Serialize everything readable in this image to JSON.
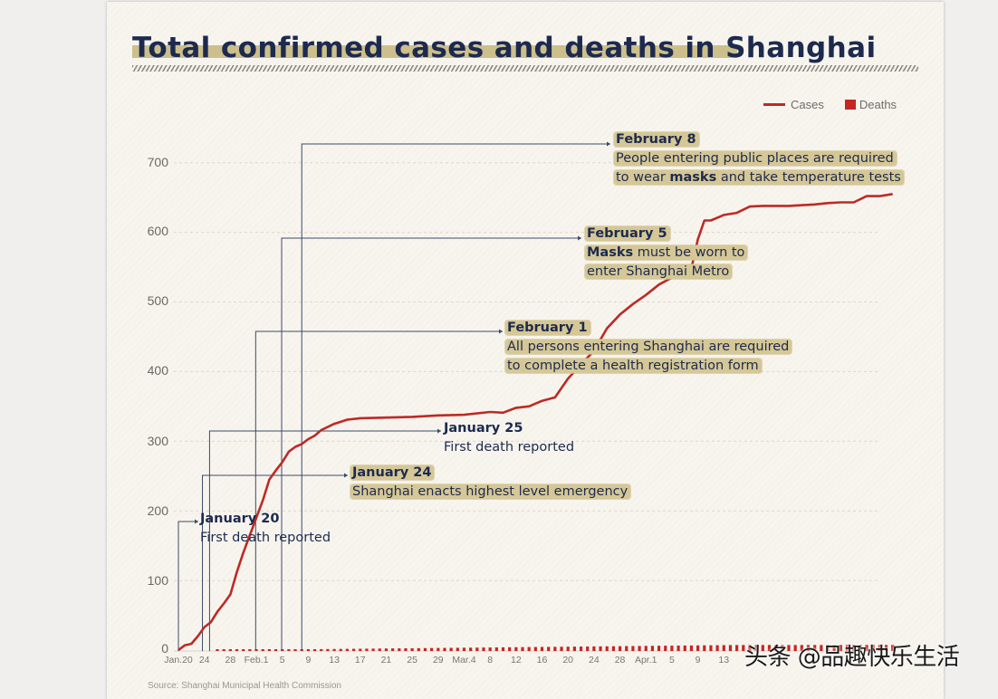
{
  "title": "Total confirmed cases and deaths in Shanghai",
  "legend": {
    "cases": "Cases",
    "deaths": "Deaths"
  },
  "colors": {
    "cases": "#bd2a26",
    "deaths": "#c52524",
    "title": "#1d2a4f",
    "highlight": "#d5c796",
    "background": "#f8f5ee",
    "annotation_line": "#3d4a6b"
  },
  "y_ticks": [
    "0",
    "100",
    "200",
    "300",
    "400",
    "500",
    "600",
    "700"
  ],
  "x_ticks": [
    "Jan.20",
    "24",
    "28",
    "Feb.1",
    "5",
    "9",
    "13",
    "17",
    "21",
    "25",
    "29",
    "Mar.4",
    "8",
    "12",
    "16",
    "20",
    "24",
    "28",
    "Apr.1",
    "5",
    "9",
    "13"
  ],
  "annotations": [
    {
      "id": "jan20",
      "date": "January 20",
      "lines": [
        "First death reported"
      ],
      "highlighted": false
    },
    {
      "id": "jan24",
      "date": "January 24",
      "lines": [
        "Shanghai enacts highest level emergency"
      ],
      "highlighted": true
    },
    {
      "id": "jan25",
      "date": "January 25",
      "lines": [
        "First death reported"
      ],
      "highlighted": false
    },
    {
      "id": "feb1",
      "date": "February 1",
      "lines": [
        "All persons entering Shanghai are required",
        "to complete a health registration form"
      ],
      "highlighted": true
    },
    {
      "id": "feb5",
      "date": "February 5",
      "bold_word": "Masks",
      "lines": [
        " must be worn to",
        "enter Shanghai Metro"
      ],
      "highlighted": true
    },
    {
      "id": "feb8",
      "date": "February 8",
      "lines": [
        "People entering public places are required",
        "to wear ",
        "masks",
        " and take temperature tests"
      ],
      "highlighted": true
    }
  ],
  "source": "Source: Shanghai Municipal Health Commission",
  "watermark": "头条 @品趣快乐生活",
  "chart_data": {
    "type": "line",
    "title": "Total confirmed cases and deaths in Shanghai",
    "xlabel": "",
    "ylabel": "",
    "ylim": [
      0,
      700
    ],
    "grid": true,
    "legend_position": "top-right",
    "x_tick_labels": [
      "Jan.20",
      "24",
      "28",
      "Feb.1",
      "5",
      "9",
      "13",
      "17",
      "21",
      "25",
      "29",
      "Mar.4",
      "8",
      "12",
      "16",
      "20",
      "24",
      "28",
      "Apr.1",
      "5",
      "9",
      "13"
    ],
    "series": [
      {
        "name": "Cases",
        "style": "line",
        "x_day_index": [
          0,
          1,
          2,
          3,
          4,
          5,
          6,
          7,
          8,
          9,
          10,
          11,
          12,
          13,
          14,
          15,
          16,
          17,
          18,
          19,
          20,
          21,
          22,
          24,
          26,
          28,
          32,
          36,
          40,
          44,
          48,
          50,
          52,
          54,
          56,
          58,
          60,
          62,
          64,
          66,
          68,
          70,
          72,
          74,
          76,
          78,
          79,
          80,
          81,
          82,
          84,
          86,
          88,
          90,
          94,
          98,
          100,
          102,
          104,
          106,
          108,
          110
        ],
        "values": [
          0,
          7,
          9,
          20,
          33,
          40,
          55,
          67,
          80,
          112,
          140,
          165,
          190,
          215,
          245,
          258,
          270,
          285,
          292,
          296,
          303,
          308,
          316,
          325,
          331,
          333,
          334,
          335,
          337,
          338,
          342,
          341,
          348,
          350,
          358,
          363,
          390,
          410,
          430,
          462,
          482,
          497,
          510,
          525,
          535,
          545,
          548,
          590,
          617,
          617,
          625,
          628,
          637,
          638,
          638,
          640,
          642,
          643,
          643,
          652,
          652,
          655
        ]
      },
      {
        "name": "Deaths",
        "style": "bar",
        "x_day_index_range": [
          6,
          110
        ],
        "values_note": "Small bars near baseline, 1 at start rising to about 7 by late April",
        "values_start": 1,
        "values_end": 7
      }
    ]
  }
}
